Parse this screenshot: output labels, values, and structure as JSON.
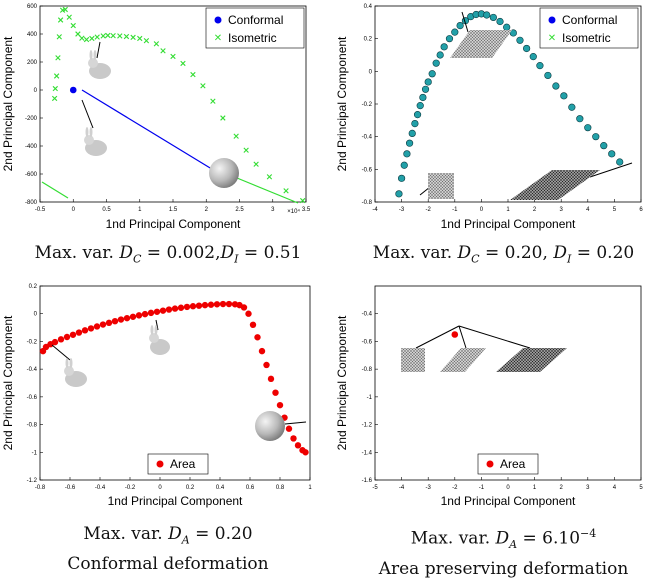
{
  "common": {
    "xlabel": "1nd Principal Component",
    "ylabel": "2nd Principal Component"
  },
  "captions": [
    {
      "prefix": "Max. var. ",
      "v1": "D",
      "s1": "C",
      "m1": " = 0.002,",
      "v2": "D",
      "s2": "I",
      "m2": " = 0.51"
    },
    {
      "prefix": "Max. var. ",
      "v1": "D",
      "s1": "C",
      "m1": " = 0.20, ",
      "v2": "D",
      "s2": "I",
      "m2": " = 0.20"
    },
    {
      "prefix": "Max. var. ",
      "v1": "D",
      "s1": "A",
      "m1": " = 0.20",
      "line2": "Conformal deformation"
    },
    {
      "prefix": "Max. var. ",
      "v1": "D",
      "s1": "A",
      "m1": " = 6.10",
      "sup": "−4",
      "line2": "Area preserving deformation"
    }
  ],
  "colors": {
    "conformal": "#0000ee",
    "isometric": "#33dd33",
    "area": "#ee0000",
    "teal": "#22a0a8"
  },
  "chart_data": [
    {
      "type": "scatter",
      "x_exponent": "×10⁴",
      "xlim": [
        -0.5,
        3.5
      ],
      "ylim": [
        -800,
        600
      ],
      "xticks": [
        "-0.5",
        "0",
        "0.5",
        "1",
        "1.5",
        "2",
        "2.5",
        "3",
        "3.5"
      ],
      "yticks": [
        "600",
        "400",
        "200",
        "0",
        "-200",
        "-400",
        "-600",
        "-800"
      ],
      "legend": [
        {
          "label": "Conformal"
        },
        {
          "label": "Isometric"
        }
      ],
      "legend_position": "top-right",
      "series": [
        {
          "name": "Conformal",
          "marker": "dot",
          "points": [
            [
              0,
              0
            ]
          ]
        },
        {
          "name": "Isometric",
          "marker": "x",
          "points": [
            [
              -0.28,
              -60
            ],
            [
              -0.27,
              10
            ],
            [
              -0.25,
              100
            ],
            [
              -0.23,
              230
            ],
            [
              -0.21,
              380
            ],
            [
              -0.19,
              500
            ],
            [
              -0.16,
              570
            ],
            [
              -0.12,
              575
            ],
            [
              -0.06,
              520
            ],
            [
              0,
              460
            ],
            [
              0.07,
              400
            ],
            [
              0.13,
              370
            ],
            [
              0.2,
              360
            ],
            [
              0.28,
              368
            ],
            [
              0.36,
              378
            ],
            [
              0.45,
              386
            ],
            [
              0.52,
              390
            ],
            [
              0.6,
              388
            ],
            [
              0.7,
              386
            ],
            [
              0.8,
              382
            ],
            [
              0.9,
              376
            ],
            [
              1.0,
              368
            ],
            [
              1.1,
              352
            ],
            [
              1.25,
              330
            ],
            [
              1.35,
              280
            ],
            [
              1.5,
              240
            ],
            [
              1.65,
              190
            ],
            [
              1.8,
              110
            ],
            [
              1.95,
              30
            ],
            [
              2.1,
              -80
            ],
            [
              2.25,
              -200
            ],
            [
              2.45,
              -330
            ],
            [
              2.6,
              -430
            ],
            [
              2.75,
              -530
            ],
            [
              2.95,
              -620
            ],
            [
              3.2,
              -720
            ],
            [
              3.45,
              -790
            ]
          ]
        }
      ]
    },
    {
      "type": "scatter",
      "xlim": [
        -4,
        6
      ],
      "ylim": [
        -0.8,
        0.4
      ],
      "xticks": [
        "-4",
        "-3",
        "-2",
        "-1",
        "0",
        "1",
        "2",
        "3",
        "4",
        "5",
        "6"
      ],
      "yticks": [
        "0.4",
        "0.2",
        "0",
        "-0.2",
        "-0.4",
        "-0.6",
        "-0.8"
      ],
      "legend": [
        {
          "label": "Conformal"
        },
        {
          "label": "Isometric"
        }
      ],
      "legend_position": "top-right",
      "series": [
        {
          "name": "Conformal",
          "marker": "dot",
          "points": [
            [
              -3.1,
              -0.75
            ],
            [
              -3.0,
              -0.655
            ],
            [
              -2.9,
              -0.575
            ],
            [
              -2.8,
              -0.505
            ],
            [
              -2.7,
              -0.44
            ],
            [
              -2.6,
              -0.38
            ],
            [
              -2.5,
              -0.32
            ],
            [
              -2.4,
              -0.265
            ],
            [
              -2.3,
              -0.21
            ],
            [
              -2.2,
              -0.16
            ],
            [
              -2.1,
              -0.11
            ],
            [
              -2.0,
              -0.065
            ],
            [
              -1.85,
              -0.015
            ],
            [
              -1.7,
              0.05
            ],
            [
              -1.55,
              0.1
            ],
            [
              -1.4,
              0.15
            ],
            [
              -1.2,
              0.2
            ],
            [
              -1.0,
              0.24
            ],
            [
              -0.8,
              0.28
            ],
            [
              -0.6,
              0.31
            ],
            [
              -0.4,
              0.335
            ],
            [
              -0.2,
              0.348
            ],
            [
              0.0,
              0.352
            ],
            [
              0.2,
              0.345
            ],
            [
              0.45,
              0.33
            ],
            [
              0.7,
              0.305
            ],
            [
              0.95,
              0.27
            ],
            [
              1.2,
              0.235
            ],
            [
              1.45,
              0.19
            ],
            [
              1.7,
              0.14
            ],
            [
              1.95,
              0.09
            ],
            [
              2.2,
              0.035
            ],
            [
              2.5,
              -0.025
            ],
            [
              2.8,
              -0.09
            ],
            [
              3.1,
              -0.15
            ],
            [
              3.4,
              -0.22
            ],
            [
              3.7,
              -0.29
            ],
            [
              4.0,
              -0.345
            ],
            [
              4.3,
              -0.4
            ],
            [
              4.6,
              -0.455
            ],
            [
              4.9,
              -0.505
            ],
            [
              5.2,
              -0.555
            ]
          ]
        }
      ]
    },
    {
      "type": "scatter",
      "xlim": [
        -0.8,
        1
      ],
      "ylim": [
        -1.2,
        0.2
      ],
      "xticks": [
        "-0.8",
        "-0.6",
        "-0.4",
        "-0.2",
        "0",
        "0.2",
        "0.4",
        "0.6",
        "0.8",
        "1"
      ],
      "yticks": [
        "0.2",
        "0",
        "-0.2",
        "-0.4",
        "-0.6",
        "-0.8",
        "-1",
        "-1.2"
      ],
      "legend": [
        {
          "label": "Area"
        }
      ],
      "legend_position": "bottom-center",
      "series": [
        {
          "name": "Area",
          "marker": "dot",
          "points": [
            [
              -0.78,
              -0.27
            ],
            [
              -0.76,
              -0.24
            ],
            [
              -0.73,
              -0.22
            ],
            [
              -0.7,
              -0.205
            ],
            [
              -0.66,
              -0.185
            ],
            [
              -0.62,
              -0.168
            ],
            [
              -0.58,
              -0.152
            ],
            [
              -0.54,
              -0.136
            ],
            [
              -0.5,
              -0.12
            ],
            [
              -0.46,
              -0.106
            ],
            [
              -0.42,
              -0.092
            ],
            [
              -0.38,
              -0.078
            ],
            [
              -0.34,
              -0.066
            ],
            [
              -0.3,
              -0.054
            ],
            [
              -0.26,
              -0.042
            ],
            [
              -0.22,
              -0.032
            ],
            [
              -0.18,
              -0.022
            ],
            [
              -0.14,
              -0.012
            ],
            [
              -0.1,
              -0.003
            ],
            [
              -0.06,
              0.006
            ],
            [
              -0.02,
              0.014
            ],
            [
              0.02,
              0.022
            ],
            [
              0.06,
              0.03
            ],
            [
              0.1,
              0.037
            ],
            [
              0.14,
              0.043
            ],
            [
              0.18,
              0.049
            ],
            [
              0.22,
              0.054
            ],
            [
              0.26,
              0.058
            ],
            [
              0.3,
              0.062
            ],
            [
              0.34,
              0.065
            ],
            [
              0.38,
              0.068
            ],
            [
              0.42,
              0.07
            ],
            [
              0.46,
              0.07
            ],
            [
              0.5,
              0.068
            ],
            [
              0.53,
              0.062
            ],
            [
              0.56,
              0.045
            ],
            [
              0.59,
              0.0
            ],
            [
              0.62,
              -0.08
            ],
            [
              0.65,
              -0.17
            ],
            [
              0.68,
              -0.27
            ],
            [
              0.71,
              -0.37
            ],
            [
              0.74,
              -0.47
            ],
            [
              0.77,
              -0.57
            ],
            [
              0.8,
              -0.66
            ],
            [
              0.83,
              -0.75
            ],
            [
              0.86,
              -0.83
            ],
            [
              0.89,
              -0.9
            ],
            [
              0.92,
              -0.95
            ],
            [
              0.95,
              -0.985
            ],
            [
              0.97,
              -1.0
            ]
          ]
        }
      ]
    },
    {
      "type": "scatter",
      "xlim": [
        -5,
        5
      ],
      "ylim": [
        -1.6,
        -0.2
      ],
      "xticks": [
        "-5",
        "-4",
        "-3",
        "-2",
        "-1",
        "0",
        "1",
        "2",
        "3",
        "4",
        "5"
      ],
      "yticks": [
        "-0.4",
        "-0.6",
        "-0.8",
        "-1",
        "-1.2",
        "-1.4",
        "-1.6"
      ],
      "legend": [
        {
          "label": "Area"
        }
      ],
      "legend_position": "bottom-center",
      "series": [
        {
          "name": "Area",
          "marker": "dot",
          "points": [
            [
              -2.0,
              -0.55
            ]
          ]
        }
      ]
    }
  ]
}
